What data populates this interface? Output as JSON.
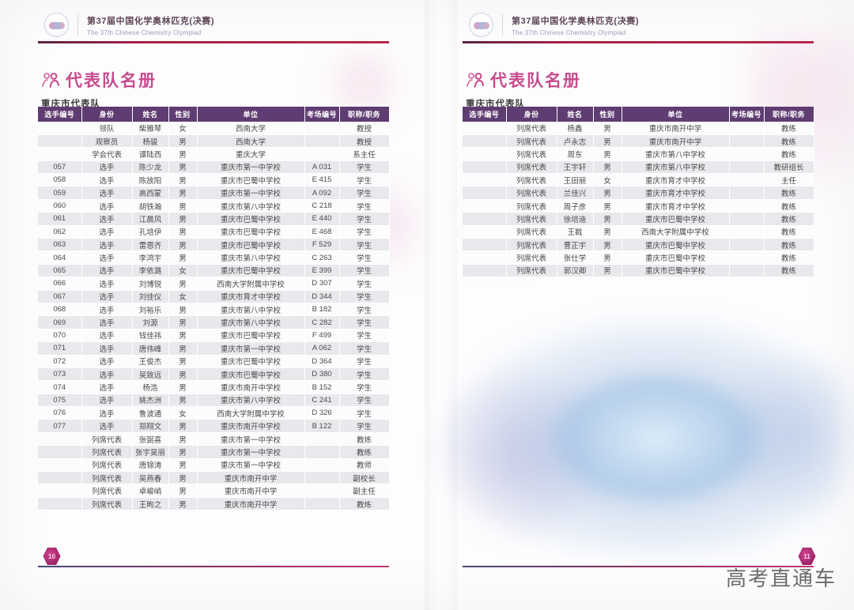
{
  "page_header": {
    "title_cn": "第37届中国化学奥林匹克(决赛)",
    "title_en": "The 37th Chinese Chemistry Olympiad"
  },
  "section": {
    "title": "代表队名册",
    "subtitle": "重庆市代表队"
  },
  "table": {
    "columns": [
      "选手编号",
      "身份",
      "姓名",
      "性别",
      "单位",
      "考场编号",
      "职称/职务"
    ],
    "left_rows": [
      [
        "",
        "领队",
        "柴雅琴",
        "女",
        "西南大学",
        "",
        "教授"
      ],
      [
        "",
        "观察员",
        "杨骏",
        "男",
        "西南大学",
        "",
        "教授"
      ],
      [
        "",
        "学会代表",
        "谭陆西",
        "男",
        "重庆大学",
        "",
        "系主任"
      ],
      [
        "057",
        "选手",
        "陈少龙",
        "男",
        "重庆市第一中学校",
        "A 031",
        "学生"
      ],
      [
        "058",
        "选手",
        "陈放阳",
        "男",
        "重庆市巴蜀中学校",
        "E 415",
        "学生"
      ],
      [
        "059",
        "选手",
        "高西蒙",
        "男",
        "重庆市第一中学校",
        "A 092",
        "学生"
      ],
      [
        "060",
        "选手",
        "胡铁瀚",
        "男",
        "重庆市第八中学校",
        "C 218",
        "学生"
      ],
      [
        "061",
        "选手",
        "江晨风",
        "男",
        "重庆市巴蜀中学校",
        "E 440",
        "学生"
      ],
      [
        "062",
        "选手",
        "孔培伊",
        "男",
        "重庆市巴蜀中学校",
        "E 468",
        "学生"
      ],
      [
        "063",
        "选手",
        "雷恩齐",
        "男",
        "重庆市巴蜀中学校",
        "F 529",
        "学生"
      ],
      [
        "064",
        "选手",
        "李鸿宇",
        "男",
        "重庆市第八中学校",
        "C 263",
        "学生"
      ],
      [
        "065",
        "选手",
        "李依潞",
        "女",
        "重庆市巴蜀中学校",
        "E 399",
        "学生"
      ],
      [
        "066",
        "选手",
        "刘博锐",
        "男",
        "西南大学附属中学校",
        "D 307",
        "学生"
      ],
      [
        "067",
        "选手",
        "刘佳仪",
        "女",
        "重庆市育才中学校",
        "D 344",
        "学生"
      ],
      [
        "068",
        "选手",
        "刘裕乐",
        "男",
        "重庆市第八中学校",
        "B 182",
        "学生"
      ],
      [
        "069",
        "选手",
        "刘源",
        "男",
        "重庆市第八中学校",
        "C 282",
        "学生"
      ],
      [
        "070",
        "选手",
        "钱佳祎",
        "男",
        "重庆市巴蜀中学校",
        "F 499",
        "学生"
      ],
      [
        "071",
        "选手",
        "唐伟峰",
        "男",
        "重庆市第一中学校",
        "A 062",
        "学生"
      ],
      [
        "072",
        "选手",
        "王俊杰",
        "男",
        "重庆市巴蜀中学校",
        "D 364",
        "学生"
      ],
      [
        "073",
        "选手",
        "吴致远",
        "男",
        "重庆市巴蜀中学校",
        "D 380",
        "学生"
      ],
      [
        "074",
        "选手",
        "杨浩",
        "男",
        "重庆市南开中学校",
        "B 152",
        "学生"
      ],
      [
        "075",
        "选手",
        "姚杰洲",
        "男",
        "重庆市第八中学校",
        "C 241",
        "学生"
      ],
      [
        "076",
        "选手",
        "鲁波通",
        "女",
        "西南大学附属中学校",
        "D 326",
        "学生"
      ],
      [
        "077",
        "选手",
        "郑翔文",
        "男",
        "重庆市南开中学校",
        "B 122",
        "学生"
      ],
      [
        "",
        "列席代表",
        "张弼喜",
        "男",
        "重庆市第一中学校",
        "",
        "教练"
      ],
      [
        "",
        "列席代表",
        "张宇昊丽",
        "男",
        "重庆市第一中学校",
        "",
        "教练"
      ],
      [
        "",
        "列席代表",
        "唐锦涛",
        "男",
        "重庆市第一中学校",
        "",
        "教师"
      ],
      [
        "",
        "列席代表",
        "吴燕春",
        "男",
        "重庆市南开中学",
        "",
        "副校长"
      ],
      [
        "",
        "列席代表",
        "卓峻峭",
        "男",
        "重庆市南开中学",
        "",
        "副主任"
      ],
      [
        "",
        "列席代表",
        "王昫之",
        "男",
        "重庆市南开中学",
        "",
        "教练"
      ]
    ],
    "right_rows": [
      [
        "",
        "列席代表",
        "杨鑫",
        "男",
        "重庆市南开中学",
        "",
        "教练"
      ],
      [
        "",
        "列席代表",
        "卢永志",
        "男",
        "重庆市南开中学",
        "",
        "教练"
      ],
      [
        "",
        "列席代表",
        "周东",
        "男",
        "重庆市第八中学校",
        "",
        "教练"
      ],
      [
        "",
        "列席代表",
        "王宇轩",
        "男",
        "重庆市第八中学校",
        "",
        "教研组长"
      ],
      [
        "",
        "列席代表",
        "王田丽",
        "女",
        "重庆市育才中学校",
        "",
        "主任"
      ],
      [
        "",
        "列席代表",
        "兰佳兴",
        "男",
        "重庆市育才中学校",
        "",
        "教练"
      ],
      [
        "",
        "列席代表",
        "周子彦",
        "男",
        "重庆市育才中学校",
        "",
        "教练"
      ],
      [
        "",
        "列席代表",
        "徐培迪",
        "男",
        "重庆市巴蜀中学校",
        "",
        "教练"
      ],
      [
        "",
        "列席代表",
        "王戡",
        "男",
        "西南大学附属中学校",
        "",
        "教练"
      ],
      [
        "",
        "列席代表",
        "曹正宇",
        "男",
        "重庆市巴蜀中学校",
        "",
        "教练"
      ],
      [
        "",
        "列席代表",
        "张仕学",
        "男",
        "重庆市巴蜀中学校",
        "",
        "教练"
      ],
      [
        "",
        "列席代表",
        "郭汉卿",
        "男",
        "重庆市巴蜀中学校",
        "",
        "教练"
      ]
    ]
  },
  "footer": {
    "left_page_number": "10",
    "right_page_number": "11"
  },
  "watermark_text": "高考直通车",
  "colors": {
    "table_header_purple": "#5f3d72",
    "row_alt_gray": "#e9e9ed",
    "accent_pink": "#c84b8e",
    "rule_red": "#a42345",
    "badge_magenta": "#b02a74"
  }
}
